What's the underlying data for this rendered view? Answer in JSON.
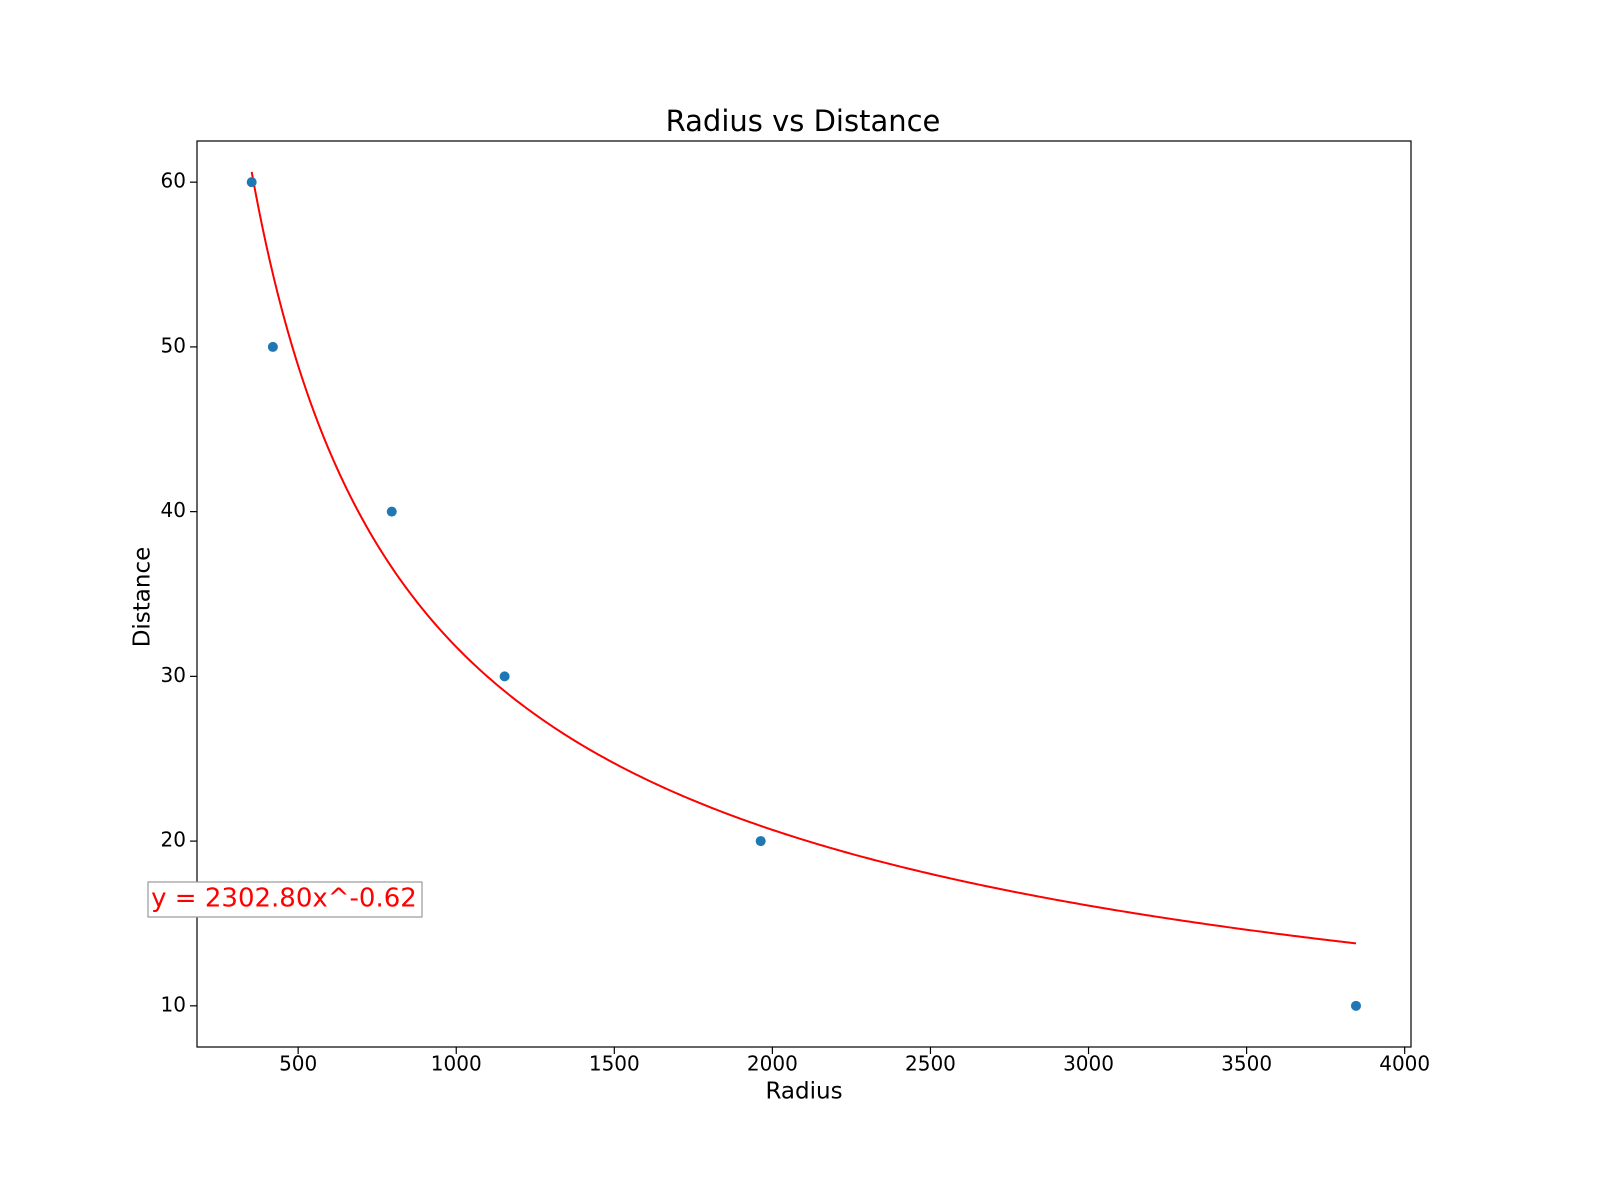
{
  "chart_data": {
    "type": "scatter",
    "title": "Radius vs Distance",
    "xlabel": "Radius",
    "ylabel": "Distance",
    "xlim": [
      180,
      4020
    ],
    "ylim": [
      7.5,
      62.5
    ],
    "xticks": [
      500,
      1000,
      1500,
      2000,
      2500,
      3000,
      3500,
      4000
    ],
    "yticks": [
      10,
      20,
      30,
      40,
      50,
      60
    ],
    "grid": false,
    "series": [
      {
        "type": "scatter",
        "color": "#1f77b4",
        "x": [
          353,
          420,
          796,
          1153,
          1963,
          3846
        ],
        "y": [
          60,
          50,
          40,
          30,
          20,
          10
        ]
      },
      {
        "type": "line",
        "color": "#ff0000",
        "fit": {
          "form": "power",
          "a": 2302.8,
          "b": -0.62,
          "x_start": 353,
          "x_end": 3846
        }
      }
    ],
    "annotations": [
      {
        "text": "y = 2302.80x^-0.62",
        "color": "#ff0000",
        "placement": "left, below y=20"
      }
    ]
  }
}
